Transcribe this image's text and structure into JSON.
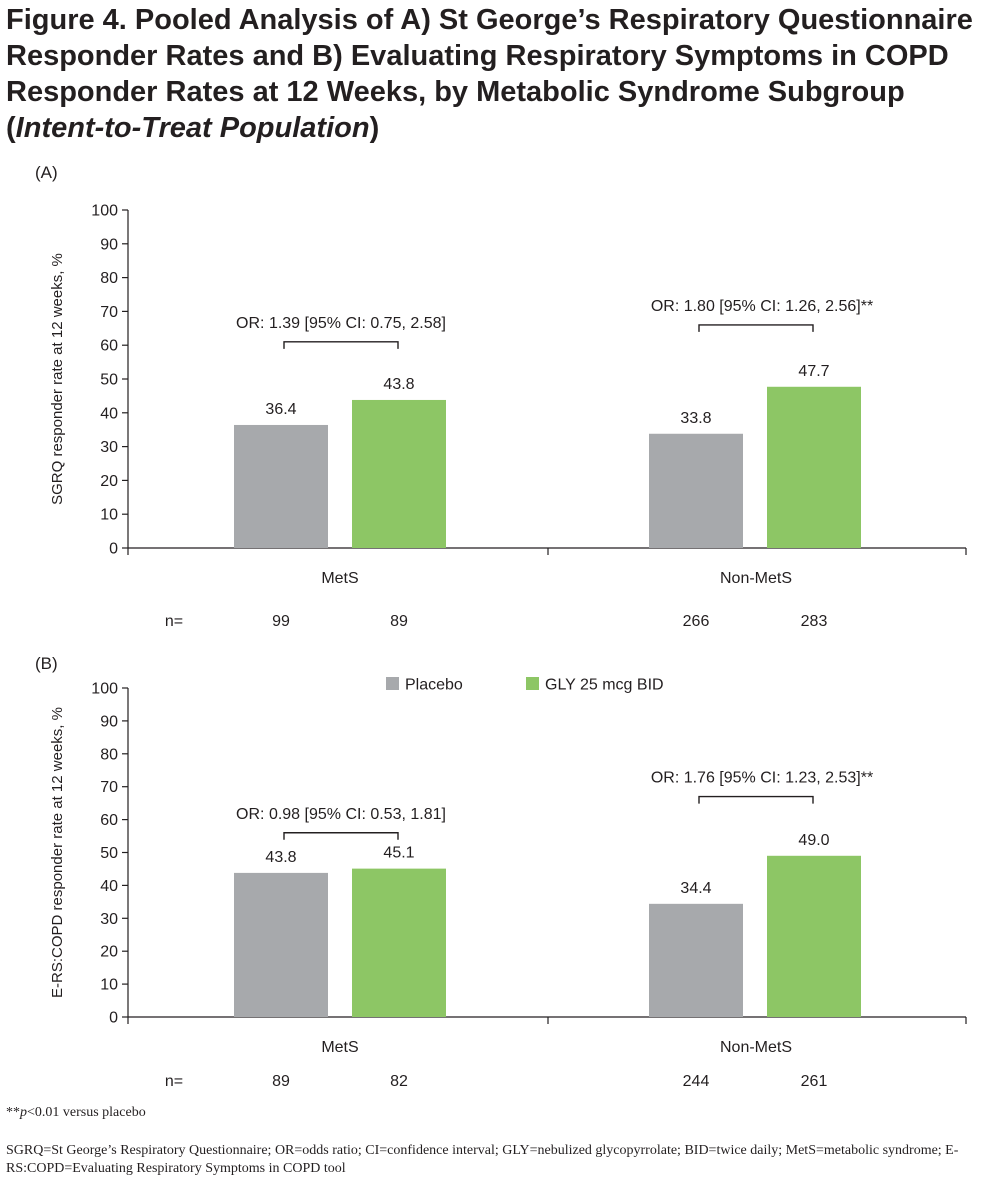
{
  "figure": {
    "title_a": "Figure 4. Pooled Analysis of A) St George’s Respiratory Questionnaire Responder Rates and B) Evaluating Respiratory Symptoms in COPD Responder Rates at 12 Weeks, by Metabolic Syndrome Subgroup (",
    "title_italic": "Intent-to-Treat Population",
    "title_b": ")",
    "footnote_prefix": "**",
    "footnote_italic": "p",
    "footnote_rest": "<0.01 versus placebo",
    "abbreviations": "SGRQ=St George’s Respiratory Questionnaire; OR=odds ratio; CI=confidence interval; GLY=nebulized glycopyrrolate; BID=twice daily; MetS=metabolic syndrome; E-RS:COPD=Evaluating Respiratory Symptoms in COPD tool"
  },
  "colors": {
    "placebo": "#a7a9ac",
    "gly": "#8dc665",
    "axis": "#231f20"
  },
  "chart_data": [
    {
      "type": "bar",
      "panel_label": "(A)",
      "ylabel": "SGRQ responder rate at 12 weeks, %",
      "ylim": [
        0,
        100
      ],
      "yticks": [
        0,
        10,
        20,
        30,
        40,
        50,
        60,
        70,
        80,
        90,
        100
      ],
      "categories": [
        "MetS",
        "Non-MetS"
      ],
      "series": [
        {
          "name": "Placebo",
          "values": [
            36.4,
            33.8
          ],
          "value_labels": [
            "36.4",
            "33.8"
          ],
          "n": [
            "99",
            "266"
          ]
        },
        {
          "name": "GLY 25 mcg BID",
          "values": [
            43.8,
            47.7
          ],
          "value_labels": [
            "43.8",
            "47.7"
          ],
          "n": [
            "89",
            "283"
          ]
        }
      ],
      "n_label": "n=",
      "annotations": [
        {
          "category": "MetS",
          "text": "OR: 1.39 [95% CI: 0.75, 2.58]",
          "bracket_y": 61
        },
        {
          "category": "Non-MetS",
          "text": "OR: 1.80 [95% CI: 1.26, 2.56]**",
          "bracket_y": 66
        }
      ],
      "legend": false
    },
    {
      "type": "bar",
      "panel_label": "(B)",
      "ylabel": "E-RS:COPD responder rate at 12 weeks, %",
      "ylim": [
        0,
        100
      ],
      "yticks": [
        0,
        10,
        20,
        30,
        40,
        50,
        60,
        70,
        80,
        90,
        100
      ],
      "categories": [
        "MetS",
        "Non-MetS"
      ],
      "series": [
        {
          "name": "Placebo",
          "values": [
            43.8,
            34.4
          ],
          "value_labels": [
            "43.8",
            "34.4"
          ],
          "n": [
            "89",
            "244"
          ]
        },
        {
          "name": "GLY 25 mcg BID",
          "values": [
            45.1,
            49.0
          ],
          "value_labels": [
            "45.1",
            "49.0"
          ],
          "n": [
            "82",
            "261"
          ]
        }
      ],
      "n_label": "n=",
      "annotations": [
        {
          "category": "MetS",
          "text": "OR: 0.98 [95% CI: 0.53, 1.81]",
          "bracket_y": 56
        },
        {
          "category": "Non-MetS",
          "text": "OR: 1.76 [95% CI: 1.23, 2.53]**",
          "bracket_y": 67
        }
      ],
      "legend": true,
      "legend_position": "top-center"
    }
  ]
}
